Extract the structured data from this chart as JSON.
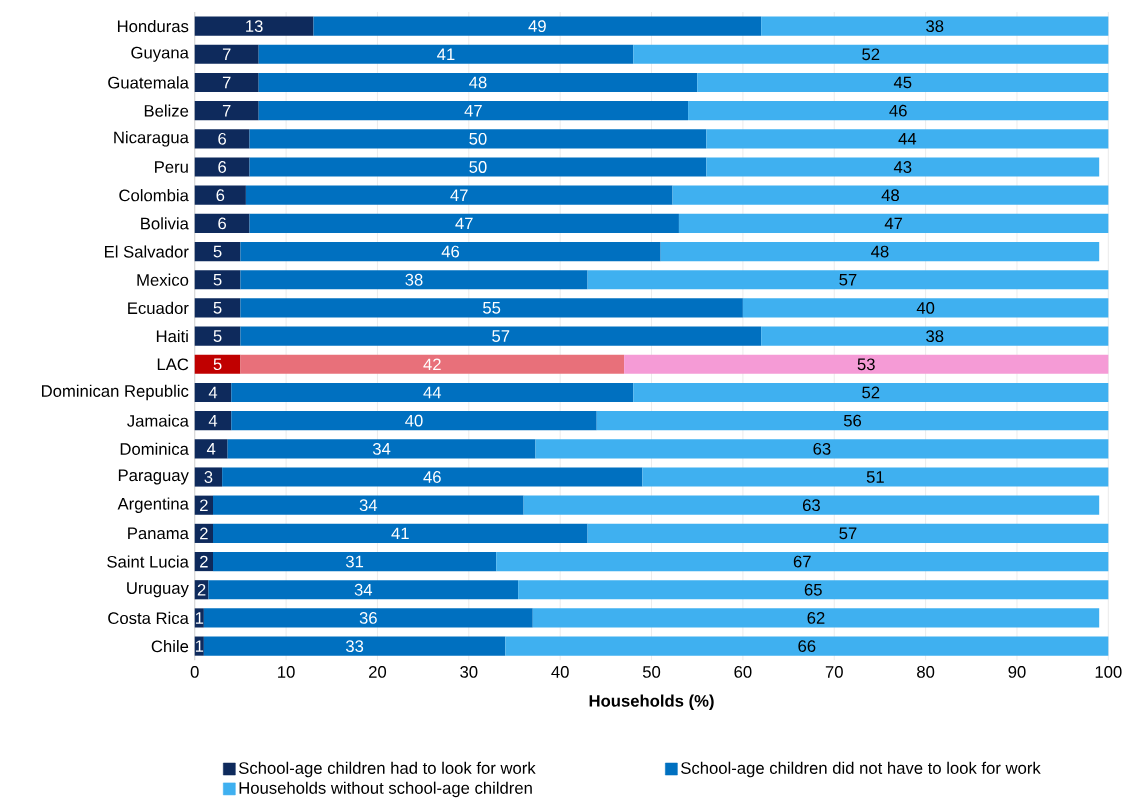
{
  "chart_data": {
    "type": "bar",
    "orientation": "horizontal",
    "stacked": true,
    "xlabel": "Households (%)",
    "categories": [
      "Honduras",
      "Guyana",
      "Guatemala",
      "Belize",
      "Nicaragua",
      "Peru",
      "Colombia",
      "Bolivia",
      "El Salvador",
      "Mexico",
      "Ecuador",
      "Haiti",
      "LAC",
      "Dominican Republic",
      "Jamaica",
      "Dominica",
      "Paraguay",
      "Argentina",
      "Panama",
      "Saint Lucia",
      "Uruguay",
      "Costa Rica",
      "Chile"
    ],
    "xlim": [
      0,
      100
    ],
    "xticks": [
      0,
      10,
      20,
      30,
      40,
      50,
      60,
      70,
      80,
      90,
      100
    ],
    "grid": "x",
    "legend": "bottom",
    "series": [
      {
        "name": "School-age children had to look for work",
        "color": "#0e2a5c",
        "colors": [
          "#0e2a5c",
          "#0e2a5c",
          "#0e2a5c",
          "#0e2a5c",
          "#0e2a5c",
          "#0e2a5c",
          "#0e2a5c",
          "#0e2a5c",
          "#0e2a5c",
          "#0e2a5c",
          "#0e2a5c",
          "#0e2a5c",
          "#c00000",
          "#0e2a5c",
          "#0e2a5c",
          "#0e2a5c",
          "#0e2a5c",
          "#0e2a5c",
          "#0e2a5c",
          "#0e2a5c",
          "#0e2a5c",
          "#0e2a5c",
          "#0e2a5c"
        ],
        "values": [
          13,
          7,
          7,
          7,
          6,
          6,
          5.6,
          6,
          5,
          5,
          5,
          5,
          5,
          4,
          4,
          3.6,
          3,
          2,
          2,
          2,
          1.5,
          1,
          1
        ],
        "value_labels": [
          "13",
          "7",
          "7",
          "7",
          "6",
          "6",
          "6",
          "6",
          "5",
          "5",
          "5",
          "5",
          "5",
          "4",
          "4",
          "4",
          "3",
          "2",
          "2",
          "2",
          "2",
          "1",
          "1"
        ]
      },
      {
        "name": "School-age children did not have to look for work",
        "color": "#0070c0",
        "colors": [
          "#0070c0",
          "#0070c0",
          "#0070c0",
          "#0070c0",
          "#0070c0",
          "#0070c0",
          "#0070c0",
          "#0070c0",
          "#0070c0",
          "#0070c0",
          "#0070c0",
          "#0070c0",
          "#e8707a",
          "#0070c0",
          "#0070c0",
          "#0070c0",
          "#0070c0",
          "#0070c0",
          "#0070c0",
          "#0070c0",
          "#0070c0",
          "#0070c0",
          "#0070c0"
        ],
        "values": [
          49,
          41,
          48,
          47,
          50,
          50,
          46.7,
          47,
          46,
          38,
          55,
          57,
          42,
          44,
          40,
          33.7,
          46,
          34,
          41,
          31,
          33.9,
          36,
          33
        ],
        "value_labels": [
          "49",
          "41",
          "48",
          "47",
          "50",
          "50",
          "47",
          "47",
          "46",
          "38",
          "55",
          "57",
          "42",
          "44",
          "40",
          "34",
          "46",
          "34",
          "41",
          "31",
          "34",
          "36",
          "33"
        ]
      },
      {
        "name": "Households without school-age children",
        "color": "#3fb0f0",
        "colors": [
          "#3fb0f0",
          "#3fb0f0",
          "#3fb0f0",
          "#3fb0f0",
          "#3fb0f0",
          "#3fb0f0",
          "#3fb0f0",
          "#3fb0f0",
          "#3fb0f0",
          "#3fb0f0",
          "#3fb0f0",
          "#3fb0f0",
          "#f59bd6",
          "#3fb0f0",
          "#3fb0f0",
          "#3fb0f0",
          "#3fb0f0",
          "#3fb0f0",
          "#3fb0f0",
          "#3fb0f0",
          "#3fb0f0",
          "#3fb0f0",
          "#3fb0f0"
        ],
        "values": [
          38,
          52,
          45,
          46,
          44,
          43,
          47.7,
          47,
          48,
          57,
          40,
          38,
          53,
          52,
          56,
          62.7,
          51,
          63,
          57,
          67,
          64.6,
          62,
          66
        ],
        "value_labels": [
          "38",
          "52",
          "45",
          "46",
          "44",
          "43",
          "48",
          "47",
          "48",
          "57",
          "40",
          "38",
          "53",
          "52",
          "56",
          "63",
          "51",
          "63",
          "57",
          "67",
          "65",
          "62",
          "66"
        ]
      }
    ]
  }
}
